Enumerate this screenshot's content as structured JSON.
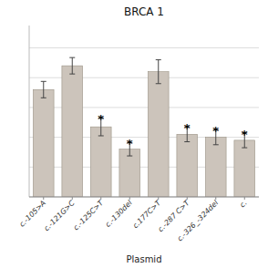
{
  "chart_data": {
    "type": "bar",
    "title": "BRCA 1",
    "xlabel": "Plasmid",
    "categories": [
      "c.-105>A",
      "c.-121G>C",
      "c.-125C>T",
      "c.-130del",
      "c.177C>T",
      "c.-287 C>T",
      "c.-326_-324del",
      "c."
    ],
    "values": [
      0.72,
      0.88,
      0.47,
      0.32,
      0.84,
      0.42,
      0.4,
      0.38
    ],
    "errors": [
      0.055,
      0.055,
      0.06,
      0.045,
      0.08,
      0.05,
      0.05,
      0.05
    ],
    "annotations": [
      {
        "category": "c.-125C>T",
        "text": "*"
      },
      {
        "category": "c.-130del",
        "text": "*"
      },
      {
        "category": "c.-287 C>T",
        "text": "*"
      },
      {
        "category": "c.-326_-324del",
        "text": "*"
      },
      {
        "category": "c.",
        "text": "*"
      }
    ],
    "color": "#ccc4bb",
    "ylim": [
      0,
      1.15
    ],
    "yticks": [
      0.0,
      0.2,
      0.4,
      0.6,
      0.8,
      1.0
    ],
    "grid": true,
    "tick_labels": "x"
  }
}
